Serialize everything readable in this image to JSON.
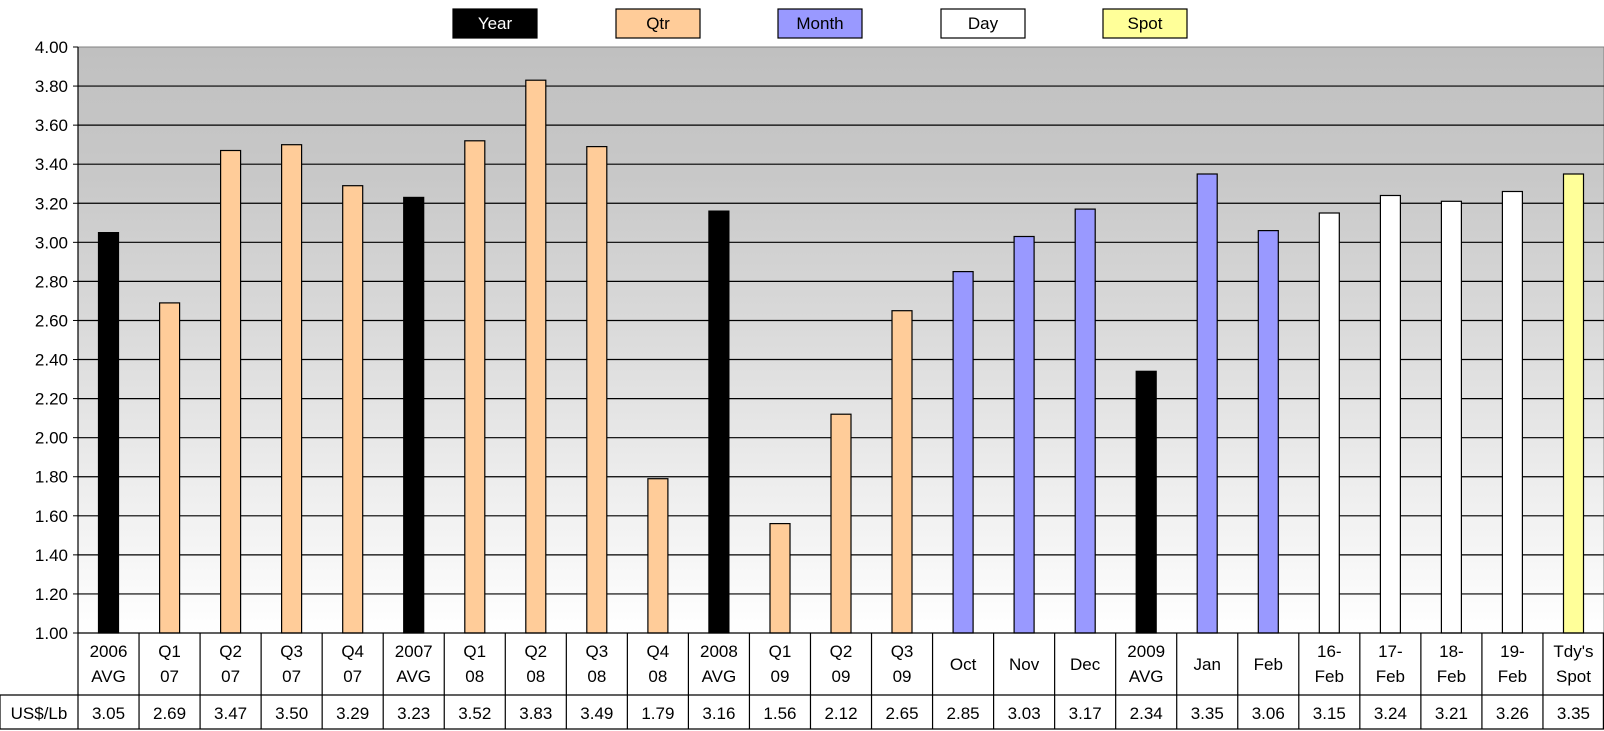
{
  "legend": [
    {
      "label": "Year",
      "color": "#000000",
      "text_color": "#ffffff"
    },
    {
      "label": "Qtr",
      "color": "#ffcc99",
      "text_color": "#000000"
    },
    {
      "label": "Month",
      "color": "#9999ff",
      "text_color": "#000000"
    },
    {
      "label": "Day",
      "color": "#ffffff",
      "text_color": "#000000"
    },
    {
      "label": "Spot",
      "color": "#ffff99",
      "text_color": "#000000"
    }
  ],
  "table_row_label": "US$/Lb",
  "chart_data": {
    "type": "bar",
    "title": "",
    "xlabel": "",
    "ylabel": "",
    "ylim": [
      1.0,
      4.0
    ],
    "y_ticks": [
      "1.00",
      "1.20",
      "1.40",
      "1.60",
      "1.80",
      "2.00",
      "2.20",
      "2.40",
      "2.60",
      "2.80",
      "3.00",
      "3.20",
      "3.40",
      "3.60",
      "3.80",
      "4.00"
    ],
    "grid": true,
    "legend_position": "top",
    "plot_background": "gradient gray (top) to white (bottom)",
    "categories": [
      [
        "2006",
        "AVG"
      ],
      [
        "Q1",
        "07"
      ],
      [
        "Q2",
        "07"
      ],
      [
        "Q3",
        "07"
      ],
      [
        "Q4",
        "07"
      ],
      [
        "2007",
        "AVG"
      ],
      [
        "Q1",
        "08"
      ],
      [
        "Q2",
        "08"
      ],
      [
        "Q3",
        "08"
      ],
      [
        "Q4",
        "08"
      ],
      [
        "2008",
        "AVG"
      ],
      [
        "Q1",
        "09"
      ],
      [
        "Q2",
        "09"
      ],
      [
        "Q3",
        "09"
      ],
      [
        "Oct"
      ],
      [
        "Nov"
      ],
      [
        "Dec"
      ],
      [
        "2009",
        "AVG"
      ],
      [
        "Jan"
      ],
      [
        "Feb"
      ],
      [
        "16-",
        "Feb"
      ],
      [
        "17-",
        "Feb"
      ],
      [
        "18-",
        "Feb"
      ],
      [
        "19-",
        "Feb"
      ],
      [
        "Tdy's",
        "Spot"
      ]
    ],
    "values": [
      3.05,
      2.69,
      3.47,
      3.5,
      3.29,
      3.23,
      3.52,
      3.83,
      3.49,
      1.79,
      3.16,
      1.56,
      2.12,
      2.65,
      2.85,
      3.03,
      3.17,
      2.34,
      3.35,
      3.06,
      3.15,
      3.24,
      3.21,
      3.26,
      3.35
    ],
    "value_labels": [
      "3.05",
      "2.69",
      "3.47",
      "3.50",
      "3.29",
      "3.23",
      "3.52",
      "3.83",
      "3.49",
      "1.79",
      "3.16",
      "1.56",
      "2.12",
      "2.65",
      "2.85",
      "3.03",
      "3.17",
      "2.34",
      "3.35",
      "3.06",
      "3.15",
      "3.24",
      "3.21",
      "3.26",
      "3.35"
    ],
    "bar_groups": [
      "Year",
      "Qtr",
      "Qtr",
      "Qtr",
      "Qtr",
      "Year",
      "Qtr",
      "Qtr",
      "Qtr",
      "Qtr",
      "Year",
      "Qtr",
      "Qtr",
      "Qtr",
      "Month",
      "Month",
      "Month",
      "Year",
      "Month",
      "Month",
      "Day",
      "Day",
      "Day",
      "Day",
      "Spot"
    ]
  }
}
